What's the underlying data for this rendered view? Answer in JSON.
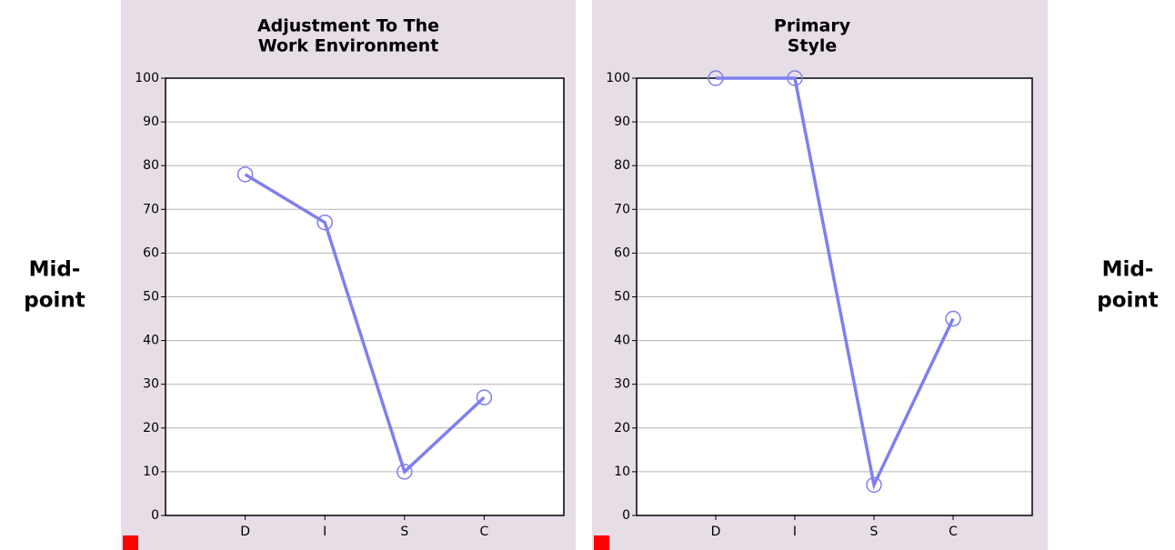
{
  "chart_data": [
    {
      "type": "line",
      "title": [
        "Adjustment To The",
        "Work Environment"
      ],
      "categories": [
        "D",
        "I",
        "S",
        "C"
      ],
      "series": [
        {
          "color": "#7f7fef",
          "values": [
            78,
            67,
            10,
            27
          ]
        }
      ],
      "ylim": [
        0,
        100
      ],
      "yticks": [
        0,
        10,
        20,
        30,
        40,
        50,
        60,
        70,
        80,
        90,
        100
      ],
      "grid": true
    },
    {
      "type": "line",
      "title": [
        "Primary",
        "Style"
      ],
      "categories": [
        "D",
        "I",
        "S",
        "C"
      ],
      "series": [
        {
          "color": "#7f7fef",
          "values": [
            100,
            100,
            7,
            45
          ]
        }
      ],
      "ylim": [
        0,
        100
      ],
      "yticks": [
        0,
        10,
        20,
        30,
        40,
        50,
        60,
        70,
        80,
        90,
        100
      ],
      "grid": true
    }
  ],
  "side_labels": [
    [
      "Mid-",
      "point"
    ],
    [
      "Mid-",
      "point"
    ]
  ]
}
